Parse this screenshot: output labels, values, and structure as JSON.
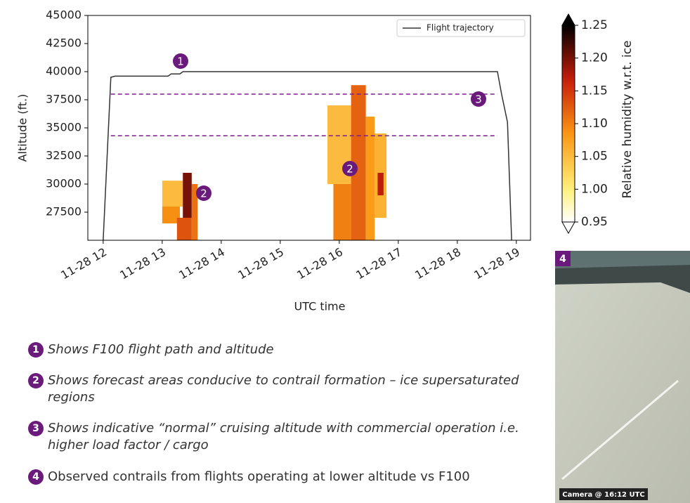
{
  "chart_data": {
    "type": "line",
    "xlabel": "UTC time",
    "ylabel": "Altitude (ft.)",
    "x": [
      12.0,
      12.13,
      12.2,
      13.1,
      13.15,
      13.3,
      13.35,
      18.68,
      18.75,
      18.85,
      18.92
    ],
    "series": [
      {
        "name": "Flight trajectory",
        "color": "#333333",
        "values": [
          25000,
          39500,
          39600,
          39600,
          39800,
          39800,
          40000,
          40000,
          38000,
          35500,
          25000
        ]
      }
    ],
    "reference_lines": [
      38000,
      34300
    ],
    "reference_color": "#7b1f8f",
    "xlim": [
      11.74,
      19.24
    ],
    "xticks": [
      {
        "value": 12,
        "label": "11-28 12"
      },
      {
        "value": 13,
        "label": "11-28 13"
      },
      {
        "value": 14,
        "label": "11-28 14"
      },
      {
        "value": 15,
        "label": "11-28 15"
      },
      {
        "value": 16,
        "label": "11-28 16"
      },
      {
        "value": 17,
        "label": "11-28 17"
      },
      {
        "value": 18,
        "label": "11-28 18"
      },
      {
        "value": 19,
        "label": "11-28 19"
      }
    ],
    "ylim": [
      25000,
      45000
    ],
    "yticks": [
      27500,
      30000,
      32500,
      35000,
      37500,
      40000,
      42500,
      45000
    ],
    "legend": "upper right",
    "heatmap": {
      "label": "Relative humidity w.r.t. ice",
      "clim": [
        0.95,
        1.25
      ],
      "cticks": [
        0.95,
        {
          "value": 1.0,
          "label": "1.00"
        },
        1.05,
        {
          "value": 1.1,
          "label": "1.10"
        },
        1.15,
        {
          "value": 1.2,
          "label": "1.20"
        },
        1.25
      ],
      "cells": [
        {
          "x": [
            13.0,
            13.35
          ],
          "y": [
            28000,
            30300
          ],
          "value": 1.05
        },
        {
          "x": [
            13.0,
            13.3
          ],
          "y": [
            26500,
            28000
          ],
          "value": 1.09
        },
        {
          "x": [
            13.25,
            13.5
          ],
          "y": [
            25000,
            27000
          ],
          "value": 1.13
        },
        {
          "x": [
            13.35,
            13.5
          ],
          "y": [
            27000,
            31000
          ],
          "value": 1.2
        },
        {
          "x": [
            13.5,
            13.6
          ],
          "y": [
            25000,
            30000
          ],
          "value": 1.11
        },
        {
          "x": [
            15.8,
            16.2
          ],
          "y": [
            30000,
            37000
          ],
          "value": 1.05
        },
        {
          "x": [
            15.9,
            16.2
          ],
          "y": [
            25000,
            30000
          ],
          "value": 1.1
        },
        {
          "x": [
            16.2,
            16.45
          ],
          "y": [
            25000,
            38800
          ],
          "value": 1.12
        },
        {
          "x": [
            16.45,
            16.6
          ],
          "y": [
            25000,
            36000
          ],
          "value": 1.08
        },
        {
          "x": [
            16.6,
            16.8
          ],
          "y": [
            27000,
            34500
          ],
          "value": 1.06
        },
        {
          "x": [
            16.65,
            16.75
          ],
          "y": [
            29000,
            31000
          ],
          "value": 1.17
        }
      ]
    }
  },
  "markers": [
    "1",
    "2",
    "2",
    "3"
  ],
  "notes": [
    {
      "number": "1",
      "text": "Shows F100 flight path and altitude"
    },
    {
      "number": "2",
      "text": "Shows forecast areas conducive to contrail formation – ice supersaturated regions"
    },
    {
      "number": "3",
      "text": "Shows indicative “normal” cruising altitude with commercial operation i.e. higher load factor / cargo"
    },
    {
      "number": "4",
      "text": "Observed contrails from flights operating at lower altitude vs F100"
    }
  ],
  "photo": {
    "badge": "4",
    "caption": "Camera @ 16:12 UTC"
  }
}
